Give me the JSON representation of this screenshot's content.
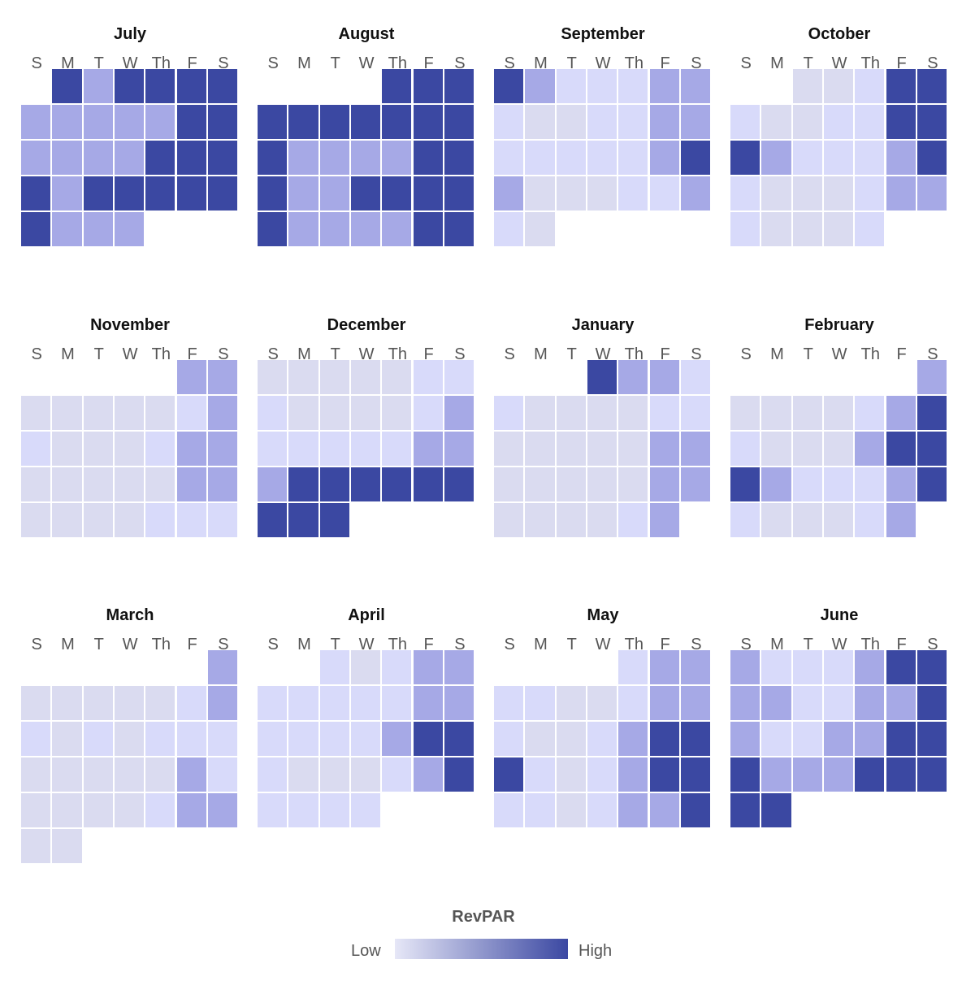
{
  "chart_data": {
    "type": "heatmap",
    "title": "",
    "day_labels": [
      "S",
      "M",
      "T",
      "W",
      "Th",
      "F",
      "S"
    ],
    "level_colors": [
      "#dadbf0",
      "#d8dafa",
      "#a6a9e6",
      "#3b48a2"
    ],
    "months": [
      {
        "name": "July",
        "weeks": [
          [
            null,
            3,
            2,
            3,
            3,
            3,
            3
          ],
          [
            2,
            2,
            2,
            2,
            2,
            3,
            3
          ],
          [
            2,
            2,
            2,
            2,
            3,
            3,
            3
          ],
          [
            3,
            2,
            3,
            3,
            3,
            3,
            3
          ],
          [
            3,
            2,
            2,
            2,
            null,
            null,
            null
          ]
        ]
      },
      {
        "name": "August",
        "weeks": [
          [
            null,
            null,
            null,
            null,
            3,
            3,
            3
          ],
          [
            3,
            3,
            3,
            3,
            3,
            3,
            3
          ],
          [
            3,
            2,
            2,
            2,
            2,
            3,
            3
          ],
          [
            3,
            2,
            2,
            3,
            3,
            3,
            3
          ],
          [
            3,
            2,
            2,
            2,
            2,
            3,
            3
          ]
        ]
      },
      {
        "name": "September",
        "weeks": [
          [
            3,
            2,
            1,
            1,
            1,
            2,
            2
          ],
          [
            1,
            0,
            0,
            1,
            1,
            2,
            2
          ],
          [
            1,
            1,
            1,
            1,
            1,
            2,
            3
          ],
          [
            2,
            0,
            0,
            0,
            1,
            1,
            2
          ],
          [
            1,
            0,
            null,
            null,
            null,
            null,
            null
          ]
        ]
      },
      {
        "name": "October",
        "weeks": [
          [
            null,
            null,
            0,
            0,
            1,
            3,
            3
          ],
          [
            1,
            0,
            0,
            1,
            1,
            3,
            3
          ],
          [
            3,
            2,
            1,
            1,
            1,
            2,
            3
          ],
          [
            1,
            0,
            0,
            0,
            1,
            2,
            2
          ],
          [
            1,
            0,
            0,
            0,
            1,
            null,
            null
          ]
        ]
      },
      {
        "name": "November",
        "weeks": [
          [
            null,
            null,
            null,
            null,
            null,
            2,
            2
          ],
          [
            0,
            0,
            0,
            0,
            0,
            1,
            2
          ],
          [
            1,
            0,
            0,
            0,
            1,
            2,
            2
          ],
          [
            0,
            0,
            0,
            0,
            0,
            2,
            2
          ],
          [
            0,
            0,
            0,
            0,
            1,
            1,
            1
          ]
        ]
      },
      {
        "name": "December",
        "weeks": [
          [
            0,
            0,
            0,
            0,
            0,
            1,
            1
          ],
          [
            1,
            0,
            0,
            0,
            0,
            1,
            2
          ],
          [
            1,
            1,
            1,
            1,
            1,
            2,
            2
          ],
          [
            2,
            3,
            3,
            3,
            3,
            3,
            3
          ],
          [
            3,
            3,
            3,
            null,
            null,
            null,
            null
          ]
        ]
      },
      {
        "name": "January",
        "weeks": [
          [
            null,
            null,
            null,
            3,
            2,
            2,
            1
          ],
          [
            1,
            0,
            0,
            0,
            0,
            1,
            1
          ],
          [
            0,
            0,
            0,
            0,
            0,
            2,
            2
          ],
          [
            0,
            0,
            0,
            0,
            0,
            2,
            2
          ],
          [
            0,
            0,
            0,
            0,
            1,
            2,
            null
          ]
        ]
      },
      {
        "name": "February",
        "weeks": [
          [
            null,
            null,
            null,
            null,
            null,
            null,
            2
          ],
          [
            0,
            0,
            0,
            0,
            1,
            2,
            3
          ],
          [
            1,
            0,
            0,
            0,
            2,
            3,
            3
          ],
          [
            3,
            2,
            1,
            1,
            1,
            2,
            3
          ],
          [
            1,
            0,
            0,
            0,
            1,
            2,
            null
          ]
        ]
      },
      {
        "name": "March",
        "weeks": [
          [
            null,
            null,
            null,
            null,
            null,
            null,
            2
          ],
          [
            0,
            0,
            0,
            0,
            0,
            1,
            2
          ],
          [
            1,
            0,
            1,
            0,
            1,
            1,
            1
          ],
          [
            0,
            0,
            0,
            0,
            0,
            2,
            1
          ],
          [
            0,
            0,
            0,
            0,
            1,
            2,
            2
          ],
          [
            0,
            0,
            null,
            null,
            null,
            null,
            null
          ]
        ]
      },
      {
        "name": "April",
        "weeks": [
          [
            null,
            null,
            1,
            0,
            1,
            2,
            2
          ],
          [
            1,
            1,
            1,
            1,
            1,
            2,
            2
          ],
          [
            1,
            1,
            1,
            1,
            2,
            3,
            3
          ],
          [
            1,
            0,
            0,
            0,
            1,
            2,
            3
          ],
          [
            1,
            1,
            1,
            1,
            null,
            null,
            null
          ]
        ]
      },
      {
        "name": "May",
        "weeks": [
          [
            null,
            null,
            null,
            null,
            1,
            2,
            2
          ],
          [
            1,
            1,
            0,
            0,
            1,
            2,
            2
          ],
          [
            1,
            0,
            0,
            1,
            2,
            3,
            3
          ],
          [
            3,
            1,
            0,
            1,
            2,
            3,
            3
          ],
          [
            1,
            1,
            0,
            1,
            2,
            2,
            3
          ]
        ]
      },
      {
        "name": "June",
        "weeks": [
          [
            2,
            1,
            1,
            1,
            2,
            3,
            3
          ],
          [
            2,
            2,
            1,
            1,
            2,
            2,
            3
          ],
          [
            2,
            1,
            1,
            2,
            2,
            3,
            3
          ],
          [
            3,
            2,
            2,
            2,
            3,
            3,
            3
          ],
          [
            3,
            3,
            null,
            null,
            null,
            null,
            null
          ]
        ]
      }
    ],
    "legend": {
      "title": "RevPAR",
      "low_label": "Low",
      "high_label": "High",
      "gradient": [
        "#e6e7f7",
        "#3b48a2"
      ]
    }
  }
}
